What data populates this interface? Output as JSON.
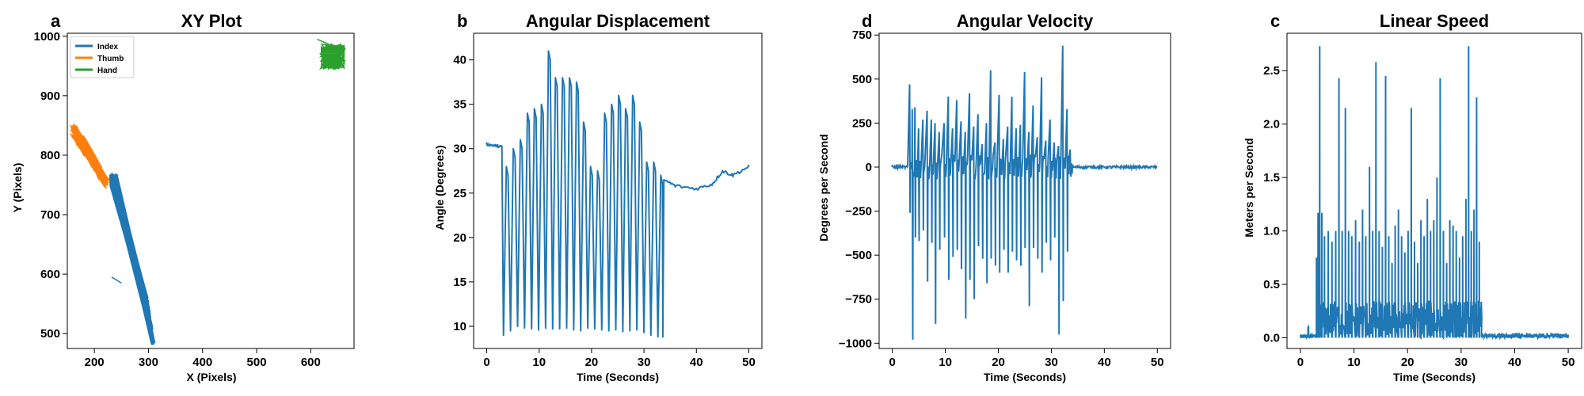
{
  "chart_data": [
    {
      "letter": "a",
      "type": "line",
      "title": "XY Plot",
      "xlabel": "X (Pixels)",
      "ylabel": "Y (Pixels)",
      "xlim": [
        150,
        680
      ],
      "ylim": [
        475,
        1005
      ],
      "xticks": [
        200,
        300,
        400,
        500,
        600
      ],
      "yticks": [
        500,
        600,
        700,
        800,
        900,
        1000
      ],
      "legend": "top-left",
      "grid": false,
      "series": [
        {
          "name": "Index",
          "color": "#1f77b4",
          "kind": "index_cloud",
          "x": [
            228,
            300
          ],
          "y": [
            770,
            485
          ],
          "description_range": "band from (228,770) to (305,485)"
        },
        {
          "name": "Thumb",
          "color": "#ff7f0e",
          "kind": "thumb_cloud",
          "x": [
            160,
            225
          ],
          "y": [
            860,
            745
          ]
        },
        {
          "name": "Hand",
          "color": "#2ca02c",
          "kind": "hand_cloud",
          "x": [
            610,
            665
          ],
          "y": [
            1000,
            940
          ]
        }
      ]
    },
    {
      "letter": "b",
      "type": "line",
      "title": "Angular Displacement",
      "xlabel": "Time (Seconds)",
      "ylabel": "Angle (Degrees)",
      "xlim": [
        -2.5,
        52.5
      ],
      "ylim": [
        7.5,
        43
      ],
      "xticks": [
        0,
        10,
        20,
        30,
        40,
        50
      ],
      "yticks": [
        10,
        15,
        20,
        25,
        30,
        35,
        40
      ],
      "grid": false,
      "series": [
        {
          "name": "",
          "color": "#1f77b4",
          "segments": [
            {
              "x0": 0.0,
              "x1": 3.0,
              "y0": 30.5,
              "y1": 30.2
            },
            {
              "x0": 3.0,
              "x1": 33.8,
              "peaks": [
                28,
                30,
                31,
                34,
                34.5,
                35,
                41,
                38,
                38,
                38,
                37.5,
                33,
                28,
                27.5,
                34,
                35,
                36,
                34.5,
                36,
                33,
                28.5,
                28.5,
                27
              ],
              "troughs": [
                9,
                9.5,
                10,
                9.8,
                9.7,
                9.6,
                9.8,
                9.7,
                9.7,
                9.8,
                9.6,
                9.5,
                9.8,
                9.7,
                9.6,
                9.5,
                9.6,
                9.4,
                9.5,
                9.6,
                9.3,
                9.0,
                8.8
              ]
            },
            {
              "x0": 33.8,
              "x1": 50.0,
              "points": [
                [
                  33.8,
                  26.5
                ],
                [
                  36,
                  25.8
                ],
                [
                  40,
                  25.5
                ],
                [
                  43,
                  26.0
                ],
                [
                  45,
                  27.5
                ],
                [
                  47,
                  27.0
                ],
                [
                  50,
                  28.0
                ]
              ]
            }
          ]
        }
      ]
    },
    {
      "letter": "d",
      "type": "line",
      "title": "Angular Velocity",
      "xlabel": "Time (Seconds)",
      "ylabel": "Degrees per Second",
      "xlim": [
        -2.5,
        52.5
      ],
      "ylim": [
        -1030,
        760
      ],
      "xticks": [
        0,
        10,
        20,
        30,
        40,
        50
      ],
      "yticks": [
        -1000,
        -750,
        -500,
        -250,
        0,
        250,
        500,
        750
      ],
      "grid": false,
      "series": [
        {
          "name": "",
          "color": "#1f77b4",
          "spikes": [
            {
              "t": 3.3,
              "hi": 470,
              "lo": -260
            },
            {
              "t": 3.8,
              "hi": 330,
              "lo": -980
            },
            {
              "t": 4.3,
              "hi": 340,
              "lo": -400
            },
            {
              "t": 5.0,
              "hi": 220,
              "lo": -420
            },
            {
              "t": 5.8,
              "hi": 270,
              "lo": -360
            },
            {
              "t": 6.6,
              "hi": 320,
              "lo": -650
            },
            {
              "t": 7.4,
              "hi": 270,
              "lo": -430
            },
            {
              "t": 8.1,
              "hi": 250,
              "lo": -890
            },
            {
              "t": 8.9,
              "hi": 200,
              "lo": -470
            },
            {
              "t": 9.8,
              "hi": 250,
              "lo": -400
            },
            {
              "t": 10.6,
              "hi": 400,
              "lo": -640
            },
            {
              "t": 11.4,
              "hi": 220,
              "lo": -510
            },
            {
              "t": 12.2,
              "hi": 380,
              "lo": -470
            },
            {
              "t": 13.0,
              "hi": 260,
              "lo": -580
            },
            {
              "t": 13.8,
              "hi": 200,
              "lo": -860
            },
            {
              "t": 14.6,
              "hi": 420,
              "lo": -640
            },
            {
              "t": 15.4,
              "hi": 230,
              "lo": -750
            },
            {
              "t": 16.2,
              "hi": 300,
              "lo": -450
            },
            {
              "t": 17.0,
              "hi": 130,
              "lo": -520
            },
            {
              "t": 17.8,
              "hi": 250,
              "lo": -660
            },
            {
              "t": 18.6,
              "hi": 550,
              "lo": -520
            },
            {
              "t": 19.4,
              "hi": 140,
              "lo": -560
            },
            {
              "t": 20.2,
              "hi": 410,
              "lo": -600
            },
            {
              "t": 21.0,
              "hi": 160,
              "lo": -470
            },
            {
              "t": 21.8,
              "hi": 230,
              "lo": -600
            },
            {
              "t": 22.6,
              "hi": 400,
              "lo": -480
            },
            {
              "t": 23.4,
              "hi": 220,
              "lo": -530
            },
            {
              "t": 24.2,
              "hi": 240,
              "lo": -560
            },
            {
              "t": 25.0,
              "hi": 540,
              "lo": -460
            },
            {
              "t": 25.8,
              "hi": 200,
              "lo": -790
            },
            {
              "t": 26.6,
              "hi": 350,
              "lo": -460
            },
            {
              "t": 27.4,
              "hi": 170,
              "lo": -520
            },
            {
              "t": 28.2,
              "hi": 510,
              "lo": -600
            },
            {
              "t": 29.0,
              "hi": 150,
              "lo": -430
            },
            {
              "t": 29.8,
              "hi": 270,
              "lo": -530
            },
            {
              "t": 30.6,
              "hi": 140,
              "lo": -400
            },
            {
              "t": 31.4,
              "hi": 120,
              "lo": -950
            },
            {
              "t": 32.2,
              "hi": 690,
              "lo": -760
            },
            {
              "t": 33.0,
              "hi": 330,
              "lo": -480
            },
            {
              "t": 33.6,
              "hi": 100,
              "lo": -50
            }
          ]
        }
      ]
    },
    {
      "letter": "c",
      "type": "line",
      "title": "Linear Speed",
      "xlabel": "Time (Seconds)",
      "ylabel": "Meters per Second",
      "xlim": [
        -2.5,
        52.5
      ],
      "ylim": [
        -0.1,
        2.85
      ],
      "xticks": [
        0,
        10,
        20,
        30,
        40,
        50
      ],
      "ytick_labels": [
        "0.0",
        "0.5",
        "1.0",
        "1.5",
        "2.0",
        "2.5"
      ],
      "yticks": [
        0.0,
        0.5,
        1.0,
        1.5,
        2.0,
        2.5
      ],
      "grid": false,
      "series": [
        {
          "name": "",
          "color": "#1f77b4",
          "spikes": [
            {
              "t": 3.0,
              "v": 0.75
            },
            {
              "t": 3.3,
              "v": 1.17
            },
            {
              "t": 3.6,
              "v": 2.73
            },
            {
              "t": 4.0,
              "v": 1.17
            },
            {
              "t": 4.5,
              "v": 0.95
            },
            {
              "t": 5.2,
              "v": 1.0
            },
            {
              "t": 5.9,
              "v": 0.9
            },
            {
              "t": 6.6,
              "v": 1.0
            },
            {
              "t": 7.2,
              "v": 2.43
            },
            {
              "t": 7.8,
              "v": 1.0
            },
            {
              "t": 8.4,
              "v": 2.15
            },
            {
              "t": 9.0,
              "v": 1.0
            },
            {
              "t": 9.6,
              "v": 0.95
            },
            {
              "t": 10.3,
              "v": 1.1
            },
            {
              "t": 11.0,
              "v": 0.9
            },
            {
              "t": 11.6,
              "v": 1.2
            },
            {
              "t": 12.2,
              "v": 0.95
            },
            {
              "t": 12.9,
              "v": 1.6
            },
            {
              "t": 13.5,
              "v": 1.0
            },
            {
              "t": 14.1,
              "v": 2.58
            },
            {
              "t": 14.7,
              "v": 1.0
            },
            {
              "t": 15.3,
              "v": 0.85
            },
            {
              "t": 15.9,
              "v": 2.45
            },
            {
              "t": 16.5,
              "v": 0.95
            },
            {
              "t": 17.1,
              "v": 0.7
            },
            {
              "t": 17.7,
              "v": 1.05
            },
            {
              "t": 18.3,
              "v": 1.2
            },
            {
              "t": 18.9,
              "v": 0.95
            },
            {
              "t": 19.5,
              "v": 0.8
            },
            {
              "t": 20.1,
              "v": 1.0
            },
            {
              "t": 20.7,
              "v": 2.15
            },
            {
              "t": 21.3,
              "v": 0.9
            },
            {
              "t": 21.9,
              "v": 0.7
            },
            {
              "t": 22.5,
              "v": 1.1
            },
            {
              "t": 23.1,
              "v": 0.95
            },
            {
              "t": 23.7,
              "v": 1.3
            },
            {
              "t": 24.3,
              "v": 1.0
            },
            {
              "t": 24.9,
              "v": 1.1
            },
            {
              "t": 25.5,
              "v": 1.5
            },
            {
              "t": 26.1,
              "v": 2.43
            },
            {
              "t": 26.7,
              "v": 1.0
            },
            {
              "t": 27.3,
              "v": 0.7
            },
            {
              "t": 27.9,
              "v": 1.1
            },
            {
              "t": 28.5,
              "v": 1.05
            },
            {
              "t": 29.1,
              "v": 1.0
            },
            {
              "t": 29.7,
              "v": 0.75
            },
            {
              "t": 30.3,
              "v": 0.95
            },
            {
              "t": 30.9,
              "v": 1.3
            },
            {
              "t": 31.4,
              "v": 2.73
            },
            {
              "t": 31.9,
              "v": 1.0
            },
            {
              "t": 32.4,
              "v": 1.2
            },
            {
              "t": 32.9,
              "v": 2.25
            },
            {
              "t": 33.4,
              "v": 0.9
            }
          ]
        }
      ]
    }
  ]
}
